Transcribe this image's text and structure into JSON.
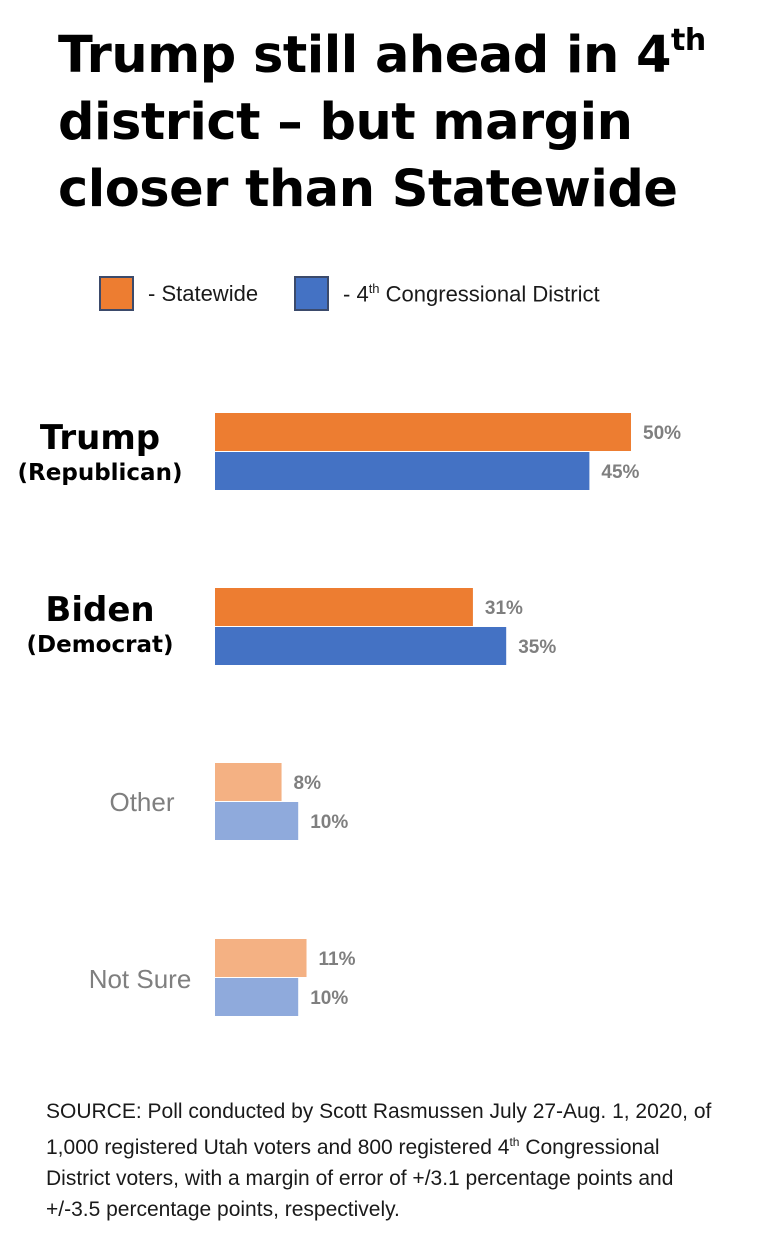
{
  "title": {
    "line1": "Trump still ahead in 4",
    "line1_sup": "th",
    "line2": "district – but margin",
    "line3": "closer than Statewide"
  },
  "legend": {
    "statewide": "- Statewide",
    "district_prefix": "- 4",
    "district_sup": "th",
    "district_suffix": " Congressional District"
  },
  "colors": {
    "statewide": "#ed7d31",
    "district": "#4472c4",
    "statewide_light": "#f4b183",
    "district_light": "#8faadc",
    "value_label": "#7f7f7f"
  },
  "categories": {
    "trump_name": "Trump",
    "trump_party": "(Republican)",
    "biden_name": "Biden",
    "biden_party": "(Democrat)",
    "other": "Other",
    "not_sure": "Not Sure"
  },
  "chart_data": {
    "type": "bar",
    "orientation": "horizontal",
    "categories": [
      "Trump (Republican)",
      "Biden (Democrat)",
      "Other",
      "Not Sure"
    ],
    "series": [
      {
        "name": "Statewide",
        "values": [
          50,
          31,
          8,
          11
        ]
      },
      {
        "name": "4th Congressional District",
        "values": [
          45,
          35,
          10,
          10
        ]
      }
    ],
    "value_labels": [
      [
        "50%",
        "45%"
      ],
      [
        "31%",
        "35%"
      ],
      [
        "8%",
        "10%"
      ],
      [
        "11%",
        "10%"
      ]
    ],
    "unit": "%",
    "xlim": [
      0,
      50
    ],
    "grid": false,
    "legend_position": "top"
  },
  "source": {
    "part1": "SOURCE: Poll conducted by Scott Rasmussen July 27-Aug. 1, 2020, of 1,000 registered Utah voters and 800 registered 4",
    "sup": "th",
    "part2": " Congressional District voters, with a margin of error of +/3.1 percentage points and +/-3.5 percentage points, respectively."
  }
}
